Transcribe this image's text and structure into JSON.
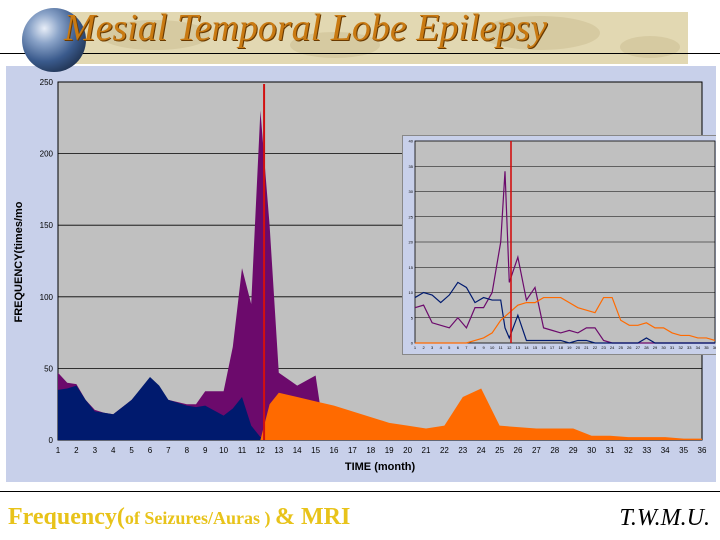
{
  "title": "Mesial Temporal Lobe Epilepsy",
  "footer": {
    "part1": "Frequency(",
    "part2": "of Seizures/Auras ) ",
    "part3": "& MRI"
  },
  "credit": "T.W.M.U.",
  "colors": {
    "seizures": "#6c0a6c",
    "auras": "#001a6e",
    "mri": "#ff6a00",
    "marker": "#d21010",
    "plot_bg": "#c0c0c0",
    "title": "#c97a12",
    "footer": "#e8c31a"
  },
  "chart_data": [
    {
      "type": "area",
      "xlabel": "TIME (month)",
      "ylabel": "FREQUENCY(times/mo",
      "x": [
        1,
        2,
        3,
        4,
        5,
        6,
        7,
        8,
        9,
        10,
        11,
        12,
        13,
        14,
        15,
        16,
        17,
        18,
        19,
        20,
        21,
        22,
        23,
        24,
        25,
        26,
        27,
        28,
        29,
        30,
        31,
        32,
        33,
        34,
        35,
        36
      ],
      "x_tick_labels": [
        "1",
        "2",
        "3",
        "4",
        "5",
        "6",
        "7",
        "8",
        "9",
        "10",
        "11",
        "12",
        "13",
        "14",
        "15",
        "16",
        "17",
        "18",
        "19",
        "20",
        "21",
        "22",
        "23",
        "24",
        "25",
        "26",
        "27",
        "28",
        "29",
        "30",
        "31",
        "32",
        "33",
        "34",
        "35",
        "36"
      ],
      "xlim": [
        1,
        36
      ],
      "ylim": [
        0,
        250
      ],
      "y_ticks": [
        0,
        50,
        100,
        150,
        200,
        250
      ],
      "series": [
        {
          "values_by_x": [
            [
              1,
              47
            ],
            [
              1.5,
              40
            ],
            [
              2,
              39
            ],
            [
              2.5,
              28
            ],
            [
              3,
              21
            ],
            [
              3.5,
              19
            ],
            [
              4,
              18
            ],
            [
              5,
              28
            ],
            [
              6,
              43
            ],
            [
              6.5,
              35
            ],
            [
              7,
              28
            ],
            [
              8,
              25
            ],
            [
              8.5,
              25
            ],
            [
              9,
              34
            ],
            [
              10,
              34
            ],
            [
              10.5,
              65
            ],
            [
              11,
              120
            ],
            [
              11.5,
              95
            ],
            [
              12,
              230
            ],
            [
              12.5,
              150
            ],
            [
              13,
              47
            ],
            [
              14,
              38
            ],
            [
              15,
              45
            ],
            [
              15.5,
              2
            ],
            [
              16,
              0
            ],
            [
              36,
              0
            ]
          ]
        },
        {
          "values_by_x": [
            [
              1,
              35
            ],
            [
              1.5,
              36
            ],
            [
              2,
              38
            ],
            [
              2.5,
              28
            ],
            [
              3,
              20
            ],
            [
              3.5,
              19
            ],
            [
              4,
              18
            ],
            [
              5,
              28
            ],
            [
              6,
              44
            ],
            [
              6.5,
              38
            ],
            [
              7,
              28
            ],
            [
              8,
              24
            ],
            [
              8.5,
              23
            ],
            [
              9,
              24
            ],
            [
              10,
              17
            ],
            [
              10.5,
              22
            ],
            [
              11,
              30
            ],
            [
              11.5,
              10
            ],
            [
              12,
              2
            ],
            [
              13,
              2
            ],
            [
              14,
              1
            ],
            [
              15,
              2
            ],
            [
              16,
              2
            ],
            [
              17,
              2
            ],
            [
              18,
              4
            ],
            [
              19,
              1
            ],
            [
              20,
              3
            ],
            [
              21,
              1
            ],
            [
              22,
              1
            ],
            [
              23,
              1
            ],
            [
              24,
              1
            ],
            [
              25,
              1
            ],
            [
              26,
              1
            ],
            [
              27,
              3
            ],
            [
              28,
              1
            ],
            [
              36,
              0
            ]
          ]
        },
        {
          "values_by_x": [
            [
              12,
              0
            ],
            [
              12.5,
              25
            ],
            [
              13,
              33
            ],
            [
              14,
              30
            ],
            [
              15,
              27
            ],
            [
              16,
              24
            ],
            [
              17,
              20
            ],
            [
              18,
              16
            ],
            [
              19,
              12
            ],
            [
              20,
              10
            ],
            [
              21,
              8
            ],
            [
              22,
              10
            ],
            [
              23,
              30
            ],
            [
              24,
              36
            ],
            [
              25,
              10
            ],
            [
              26,
              9
            ],
            [
              27,
              8
            ],
            [
              28,
              8
            ],
            [
              29,
              8
            ],
            [
              30,
              3
            ],
            [
              31,
              3
            ],
            [
              32,
              2
            ],
            [
              33,
              2
            ],
            [
              34,
              2
            ],
            [
              35,
              1
            ],
            [
              36,
              1
            ]
          ]
        }
      ],
      "marker_x": 12.2
    },
    {
      "type": "line",
      "x_tick_labels": [
        "1",
        "2",
        "3",
        "4",
        "5",
        "6",
        "7",
        "8",
        "9",
        "10",
        "11",
        "12",
        "13",
        "14",
        "15",
        "16",
        "17",
        "18",
        "19",
        "20",
        "21",
        "22",
        "23",
        "24",
        "25",
        "26",
        "27",
        "28",
        "29",
        "30",
        "31",
        "32",
        "33",
        "34",
        "35",
        "36"
      ],
      "xlim": [
        1,
        36
      ],
      "ylim": [
        0,
        40
      ],
      "y_ticks": [
        0,
        5,
        10,
        15,
        20,
        25,
        30,
        35,
        40
      ],
      "y_tick_labels": [
        "0",
        "5",
        "10",
        "15",
        "20",
        "25",
        "30",
        "35",
        "40"
      ],
      "series": [
        {
          "values_by_x": [
            [
              1,
              7
            ],
            [
              2,
              7.5
            ],
            [
              3,
              4
            ],
            [
              4,
              3.5
            ],
            [
              5,
              3
            ],
            [
              6,
              5
            ],
            [
              7,
              3
            ],
            [
              8,
              7
            ],
            [
              9,
              7
            ],
            [
              10,
              10
            ],
            [
              11,
              20
            ],
            [
              11.5,
              34
            ],
            [
              12,
              12
            ],
            [
              13,
              17
            ],
            [
              14,
              8.5
            ],
            [
              15,
              11
            ],
            [
              16,
              3
            ],
            [
              17,
              2.5
            ],
            [
              18,
              2
            ],
            [
              19,
              2.5
            ],
            [
              20,
              2
            ],
            [
              21,
              3
            ],
            [
              22,
              3
            ],
            [
              23,
              0.5
            ],
            [
              24,
              0
            ],
            [
              36,
              0
            ]
          ]
        },
        {
          "values_by_x": [
            [
              1,
              9
            ],
            [
              2,
              10
            ],
            [
              3,
              9.5
            ],
            [
              4,
              8
            ],
            [
              5,
              9.5
            ],
            [
              6,
              12
            ],
            [
              7,
              11
            ],
            [
              8,
              8
            ],
            [
              9,
              9
            ],
            [
              10,
              8.5
            ],
            [
              11,
              8.5
            ],
            [
              11.5,
              3
            ],
            [
              12,
              1
            ],
            [
              13,
              5.5
            ],
            [
              14,
              0.5
            ],
            [
              15,
              0.5
            ],
            [
              16,
              0.5
            ],
            [
              17,
              0.5
            ],
            [
              18,
              0.5
            ],
            [
              19,
              0
            ],
            [
              20,
              0.5
            ],
            [
              21,
              0.5
            ],
            [
              22,
              0
            ],
            [
              27,
              0
            ],
            [
              28,
              1
            ],
            [
              29,
              0
            ],
            [
              36,
              0
            ]
          ]
        },
        {
          "values_by_x": [
            [
              1,
              0
            ],
            [
              7,
              0
            ],
            [
              8,
              0.5
            ],
            [
              9,
              1
            ],
            [
              10,
              2
            ],
            [
              11,
              4.5
            ],
            [
              12,
              6
            ],
            [
              13,
              7.5
            ],
            [
              14,
              8
            ],
            [
              15,
              8
            ],
            [
              16,
              9
            ],
            [
              17,
              9
            ],
            [
              18,
              9
            ],
            [
              19,
              8
            ],
            [
              20,
              7
            ],
            [
              21,
              6.5
            ],
            [
              22,
              6
            ],
            [
              23,
              9
            ],
            [
              24,
              9
            ],
            [
              25,
              4.5
            ],
            [
              26,
              3.5
            ],
            [
              27,
              3.5
            ],
            [
              28,
              4
            ],
            [
              29,
              3
            ],
            [
              30,
              3
            ],
            [
              31,
              2
            ],
            [
              32,
              1.5
            ],
            [
              33,
              1.5
            ],
            [
              34,
              1
            ],
            [
              35,
              1
            ],
            [
              36,
              0.5
            ]
          ]
        }
      ],
      "marker_x": 12.2
    }
  ]
}
